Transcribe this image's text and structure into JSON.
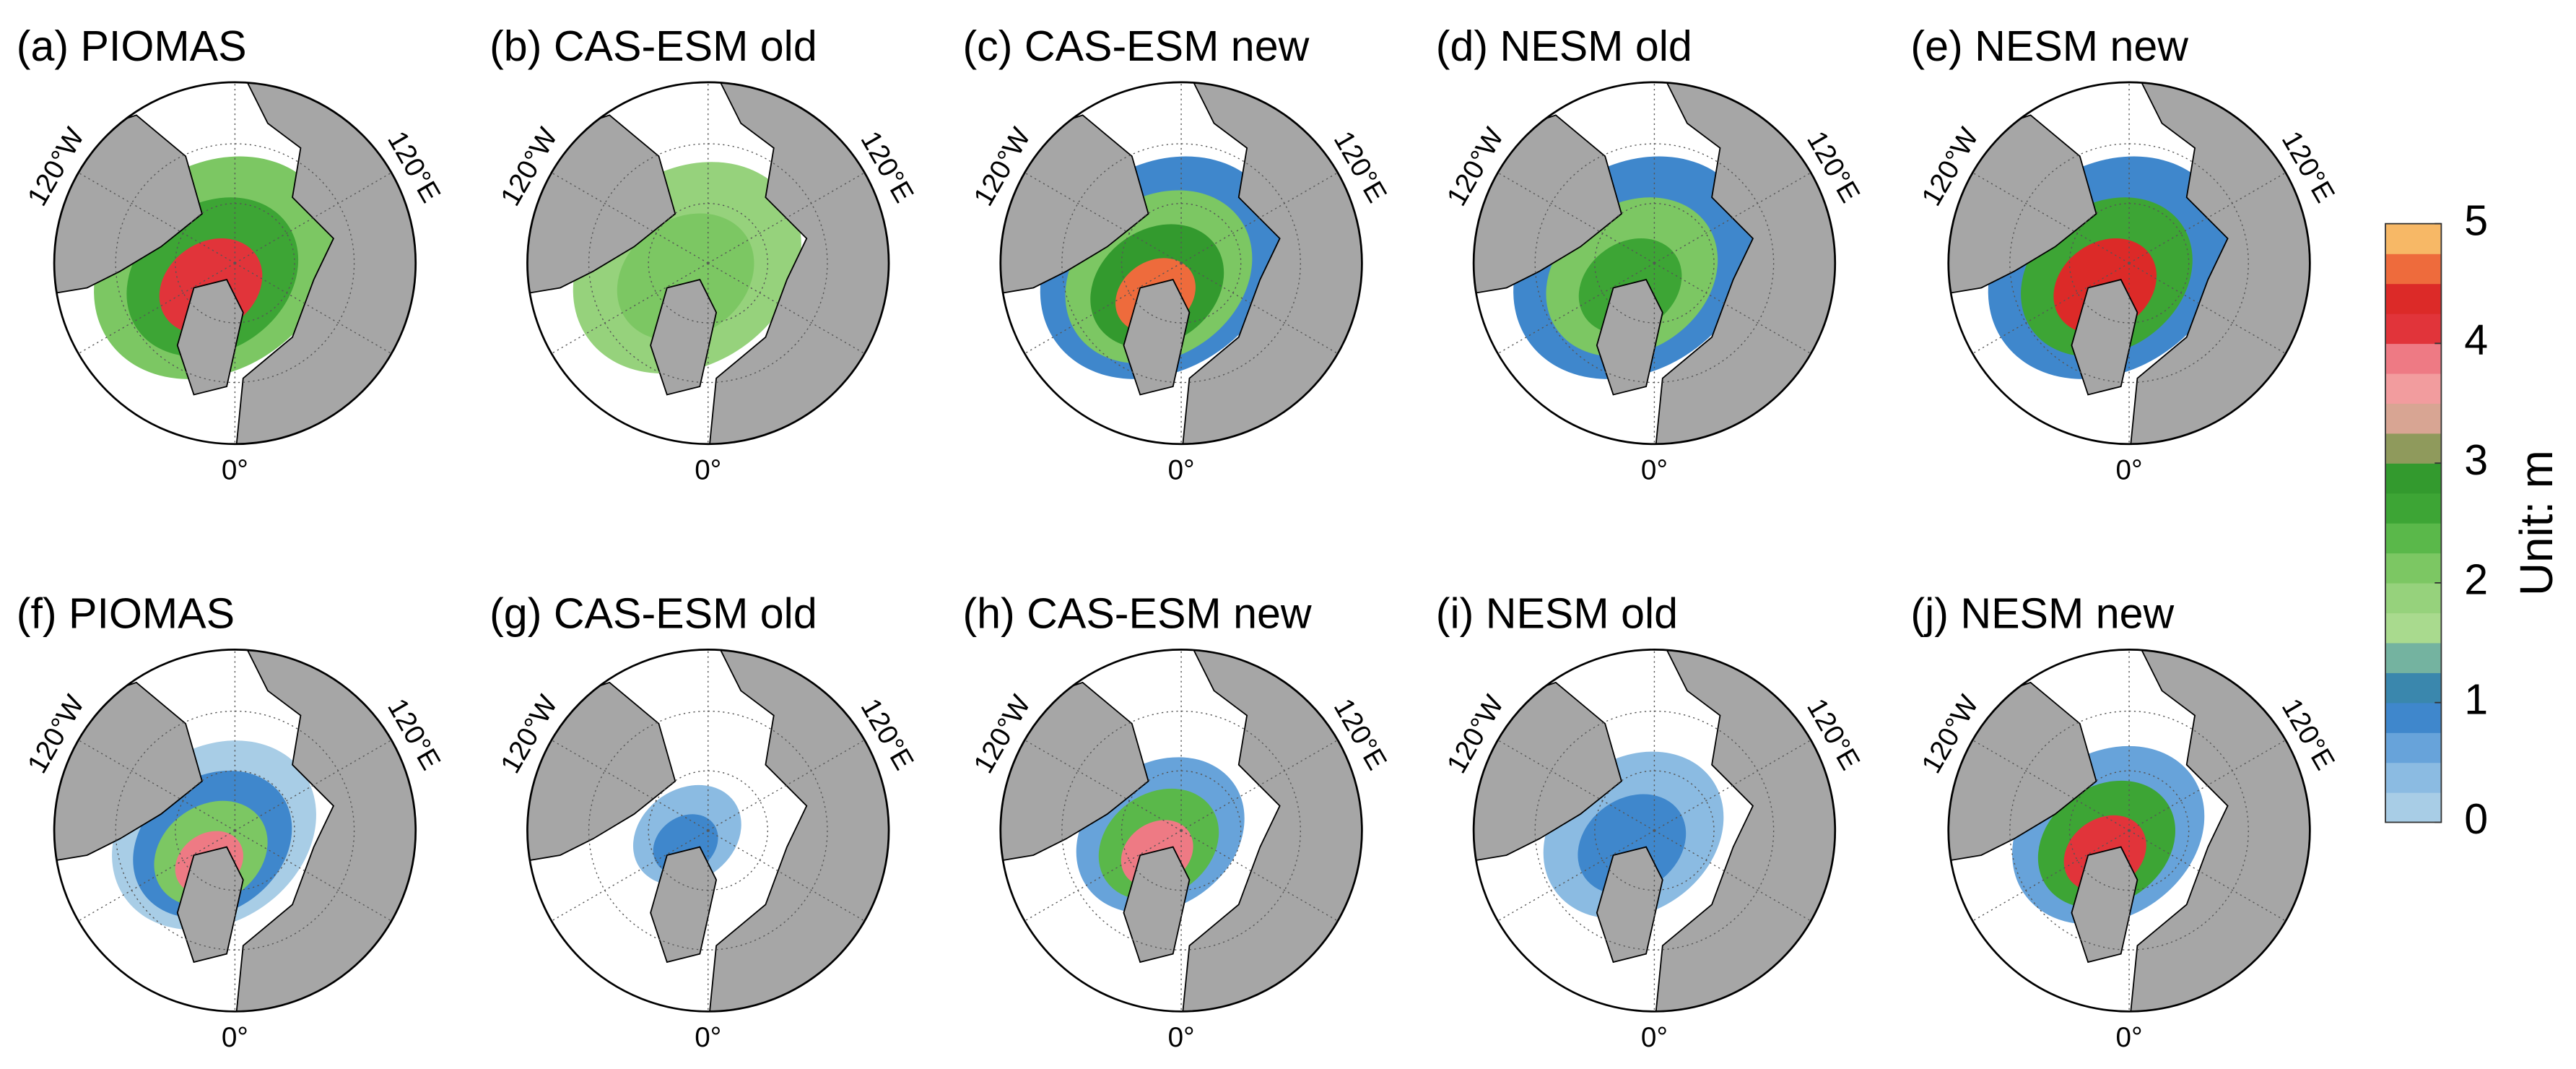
{
  "panels": [
    {
      "title": "(a) PIOMAS",
      "lon_left": "120°W",
      "lon_right": "120°E",
      "lon_bottom": "0°"
    },
    {
      "title": "(b) CAS-ESM old",
      "lon_left": "120°W",
      "lon_right": "120°E",
      "lon_bottom": "0°"
    },
    {
      "title": "(c) CAS-ESM new",
      "lon_left": "120°W",
      "lon_right": "120°E",
      "lon_bottom": "0°"
    },
    {
      "title": "(d) NESM old",
      "lon_left": "120°W",
      "lon_right": "120°E",
      "lon_bottom": "0°"
    },
    {
      "title": "(e) NESM new",
      "lon_left": "120°W",
      "lon_right": "120°E",
      "lon_bottom": "0°"
    },
    {
      "title": "(f) PIOMAS",
      "lon_left": "120°W",
      "lon_right": "120°E",
      "lon_bottom": "0°"
    },
    {
      "title": "(g) CAS-ESM old",
      "lon_left": "120°W",
      "lon_right": "120°E",
      "lon_bottom": "0°"
    },
    {
      "title": "(h) CAS-ESM new",
      "lon_left": "120°W",
      "lon_right": "120°E",
      "lon_bottom": "0°"
    },
    {
      "title": "(i) NESM old",
      "lon_left": "120°W",
      "lon_right": "120°E",
      "lon_bottom": "0°"
    },
    {
      "title": "(j) NESM new",
      "lon_left": "120°W",
      "lon_right": "120°E",
      "lon_bottom": "0°"
    }
  ],
  "colorbar": {
    "label": "Unit: m",
    "lim": [
      0,
      5
    ],
    "ticks": [
      0,
      1,
      2,
      3,
      4,
      5
    ],
    "colors": [
      "#a8cde6",
      "#8bbbe2",
      "#67a3da",
      "#3f87cc",
      "#3a87ad",
      "#74b3a0",
      "#a9da8e",
      "#96d27c",
      "#7cc763",
      "#5ab84a",
      "#3da535",
      "#339a2e",
      "#8f9a5c",
      "#d8a593",
      "#f29c9e",
      "#ee7a84",
      "#e1343a",
      "#dc2a28",
      "#ee6b3c",
      "#f7b866"
    ]
  }
}
